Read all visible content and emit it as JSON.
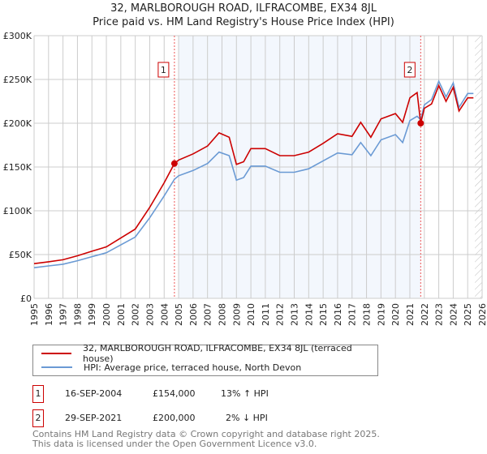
{
  "chart_data": {
    "type": "line",
    "title": "32, MARLBOROUGH ROAD, ILFRACOMBE, EX34 8JL",
    "subtitle": "Price paid vs. HM Land Registry's House Price Index (HPI)",
    "xlim": [
      1995,
      2026
    ],
    "ylim": [
      0,
      300000
    ],
    "x_ticks": [
      "1995",
      "1996",
      "1997",
      "1998",
      "1999",
      "2000",
      "2001",
      "2002",
      "2003",
      "2004",
      "2005",
      "2006",
      "2007",
      "2008",
      "2009",
      "2010",
      "2011",
      "2012",
      "2013",
      "2014",
      "2015",
      "2016",
      "2017",
      "2018",
      "2019",
      "2020",
      "2021",
      "2022",
      "2023",
      "2024",
      "2025",
      "2026"
    ],
    "y_ticks": [
      {
        "v": 0,
        "label": "£0"
      },
      {
        "v": 50000,
        "label": "£50K"
      },
      {
        "v": 100000,
        "label": "£100K"
      },
      {
        "v": 150000,
        "label": "£150K"
      },
      {
        "v": 200000,
        "label": "£200K"
      },
      {
        "v": 250000,
        "label": "£250K"
      },
      {
        "v": 300000,
        "label": "£300K"
      }
    ],
    "grid": true,
    "forecast_from": 2025.5,
    "series": [
      {
        "name": "32, MARLBOROUGH ROAD, ILFRACOMBE, EX34 8JL (terraced house)",
        "color": "#cc0000",
        "x": [
          1995,
          1996,
          1997,
          1998,
          1999,
          2000,
          2001,
          2002,
          2003,
          2004,
          2004.71,
          2005,
          2006,
          2007,
          2007.8,
          2008.5,
          2009,
          2009.5,
          2010,
          2011,
          2012,
          2013,
          2014,
          2015,
          2016,
          2017,
          2017.6,
          2018.3,
          2019,
          2020,
          2020.5,
          2021,
          2021.5,
          2021.75,
          2022,
          2022.5,
          2023,
          2023.5,
          2024,
          2024.4,
          2025,
          2025.4
        ],
        "y": [
          39600,
          41800,
          44100,
          48600,
          53800,
          58800,
          68900,
          79100,
          104000,
          132000,
          154000,
          158000,
          165000,
          174000,
          189000,
          184000,
          153000,
          156000,
          171000,
          171000,
          163000,
          163000,
          167000,
          177000,
          188000,
          185000,
          201000,
          184000,
          205000,
          211000,
          201000,
          229000,
          235000,
          200000,
          217000,
          222000,
          243000,
          225000,
          241000,
          214000,
          229000,
          229000
        ]
      },
      {
        "name": "HPI: Average price, terraced house, North Devon",
        "color": "#6a9ad4",
        "x": [
          1995,
          1996,
          1997,
          1998,
          1999,
          2000,
          2001,
          2002,
          2003,
          2004,
          2004.71,
          2005,
          2006,
          2007,
          2007.8,
          2008.5,
          2009,
          2009.5,
          2010,
          2011,
          2012,
          2013,
          2014,
          2015,
          2016,
          2017,
          2017.6,
          2018.3,
          2019,
          2020,
          2020.5,
          2021,
          2021.5,
          2021.75,
          2022,
          2022.5,
          2023,
          2023.5,
          2024,
          2024.4,
          2025,
          2025.4
        ],
        "y": [
          35000,
          37000,
          39000,
          43000,
          47600,
          52000,
          61000,
          70000,
          92000,
          117000,
          136000,
          140000,
          146000,
          154000,
          167000,
          163000,
          135000,
          138000,
          151000,
          151000,
          144000,
          144000,
          148000,
          157000,
          166000,
          164000,
          178000,
          163000,
          181000,
          187000,
          178000,
          203000,
          208000,
          204000,
          221000,
          227000,
          248000,
          230000,
          246000,
          218000,
          234000,
          234000
        ]
      }
    ],
    "annotations": [
      {
        "label": "1",
        "x": 2004.71,
        "y": 154000
      },
      {
        "label": "2",
        "x": 2021.75,
        "y": 200000
      }
    ]
  },
  "legend": {
    "red": "32, MARLBOROUGH ROAD, ILFRACOMBE, EX34 8JL (terraced house)",
    "blue": "HPI: Average price, terraced house, North Devon"
  },
  "sales": [
    {
      "num": "1",
      "date": "16-SEP-2004",
      "price": "£154,000",
      "hpi": "13% ↑ HPI"
    },
    {
      "num": "2",
      "date": "29-SEP-2021",
      "price": "£200,000",
      "hpi": "2% ↓ HPI"
    }
  ],
  "footer": {
    "line1": "Contains HM Land Registry data © Crown copyright and database right 2025.",
    "line2": "This data is licensed under the Open Government Licence v3.0."
  }
}
